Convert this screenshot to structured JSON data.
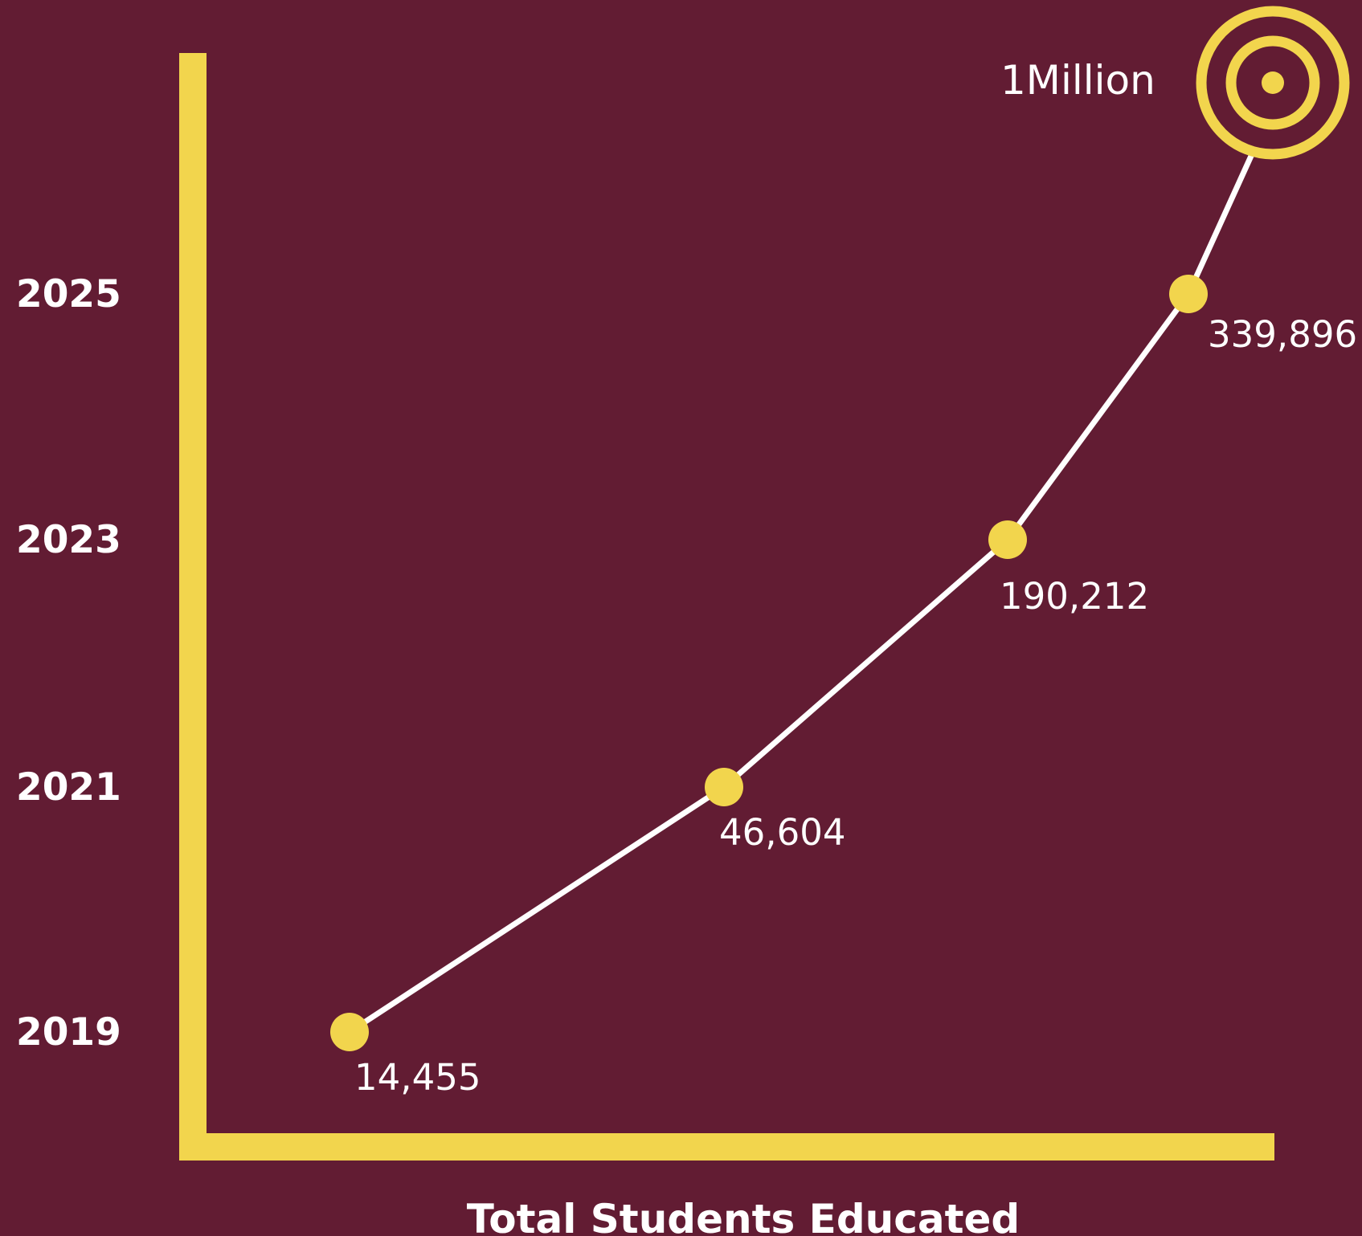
{
  "colors": {
    "background": "#621c33",
    "accent": "#f2d54d",
    "line": "#ffffff",
    "text": "#ffffff"
  },
  "chart_data": {
    "type": "line",
    "title": "",
    "xlabel": "Total Students Educated",
    "ylabel": "",
    "orientation": "years on vertical axis, values along the line",
    "categories": [
      "2019",
      "2021",
      "2023",
      "2025"
    ],
    "series": [
      {
        "values": [
          14455,
          46604,
          190212,
          339896
        ],
        "labels": [
          "14,455",
          "46,604",
          "190,212",
          "339,896"
        ]
      }
    ],
    "target": {
      "label": "1Million",
      "value": 1000000,
      "icon": "target-icon"
    },
    "grid": false,
    "legend": "none"
  }
}
